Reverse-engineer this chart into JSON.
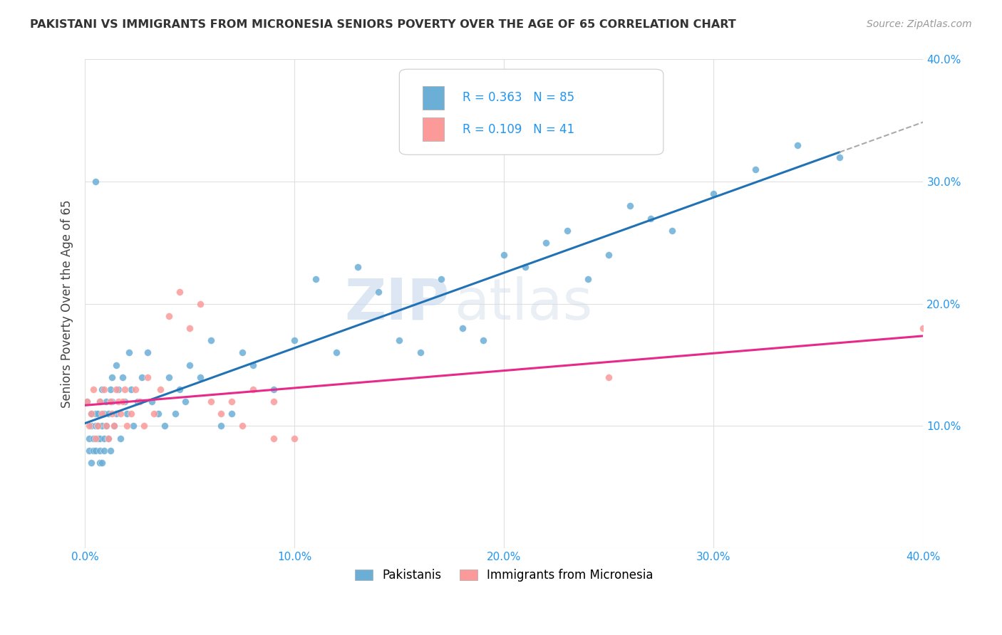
{
  "title": "PAKISTANI VS IMMIGRANTS FROM MICRONESIA SENIORS POVERTY OVER THE AGE OF 65 CORRELATION CHART",
  "source": "Source: ZipAtlas.com",
  "ylabel": "Seniors Poverty Over the Age of 65",
  "legend_pakistanis": "Pakistanis",
  "legend_micronesia": "Immigrants from Micronesia",
  "r_pakistani": 0.363,
  "n_pakistani": 85,
  "r_micronesia": 0.109,
  "n_micronesia": 41,
  "pakistani_color": "#6baed6",
  "micronesia_color": "#fb9a99",
  "pakistani_line_color": "#2171b5",
  "micronesia_line_color": "#e7298a",
  "watermark_zip": "ZIP",
  "watermark_atlas": "atlas",
  "xmin": 0.0,
  "xmax": 0.4,
  "ymin": 0.0,
  "ymax": 0.4,
  "pakistani_x": [
    0.001,
    0.002,
    0.002,
    0.003,
    0.003,
    0.003,
    0.004,
    0.004,
    0.005,
    0.005,
    0.005,
    0.006,
    0.006,
    0.006,
    0.007,
    0.007,
    0.007,
    0.007,
    0.008,
    0.008,
    0.008,
    0.009,
    0.009,
    0.009,
    0.01,
    0.01,
    0.011,
    0.011,
    0.012,
    0.012,
    0.013,
    0.013,
    0.014,
    0.015,
    0.015,
    0.016,
    0.017,
    0.018,
    0.019,
    0.02,
    0.021,
    0.022,
    0.023,
    0.025,
    0.027,
    0.03,
    0.032,
    0.035,
    0.038,
    0.04,
    0.043,
    0.045,
    0.048,
    0.05,
    0.055,
    0.06,
    0.065,
    0.07,
    0.075,
    0.08,
    0.09,
    0.1,
    0.11,
    0.12,
    0.13,
    0.14,
    0.15,
    0.16,
    0.17,
    0.18,
    0.19,
    0.2,
    0.21,
    0.22,
    0.23,
    0.24,
    0.25,
    0.26,
    0.27,
    0.28,
    0.3,
    0.32,
    0.34,
    0.36,
    0.005
  ],
  "pakistani_y": [
    0.12,
    0.08,
    0.09,
    0.1,
    0.11,
    0.07,
    0.08,
    0.09,
    0.1,
    0.11,
    0.08,
    0.09,
    0.1,
    0.11,
    0.08,
    0.09,
    0.12,
    0.07,
    0.1,
    0.13,
    0.07,
    0.09,
    0.11,
    0.08,
    0.12,
    0.1,
    0.11,
    0.09,
    0.13,
    0.08,
    0.14,
    0.12,
    0.1,
    0.15,
    0.11,
    0.13,
    0.09,
    0.14,
    0.12,
    0.11,
    0.16,
    0.13,
    0.1,
    0.12,
    0.14,
    0.16,
    0.12,
    0.11,
    0.1,
    0.14,
    0.11,
    0.13,
    0.12,
    0.15,
    0.14,
    0.17,
    0.1,
    0.11,
    0.16,
    0.15,
    0.13,
    0.17,
    0.22,
    0.16,
    0.23,
    0.21,
    0.17,
    0.16,
    0.22,
    0.18,
    0.17,
    0.24,
    0.23,
    0.25,
    0.26,
    0.22,
    0.24,
    0.28,
    0.27,
    0.26,
    0.29,
    0.31,
    0.33,
    0.32,
    0.3
  ],
  "micronesia_x": [
    0.001,
    0.002,
    0.003,
    0.004,
    0.005,
    0.006,
    0.007,
    0.008,
    0.009,
    0.01,
    0.011,
    0.012,
    0.013,
    0.014,
    0.015,
    0.016,
    0.017,
    0.018,
    0.019,
    0.02,
    0.022,
    0.024,
    0.026,
    0.028,
    0.03,
    0.033,
    0.036,
    0.04,
    0.045,
    0.05,
    0.055,
    0.06,
    0.065,
    0.07,
    0.075,
    0.08,
    0.09,
    0.1,
    0.09,
    0.25,
    0.4
  ],
  "micronesia_y": [
    0.12,
    0.1,
    0.11,
    0.13,
    0.09,
    0.1,
    0.12,
    0.11,
    0.13,
    0.1,
    0.09,
    0.12,
    0.11,
    0.1,
    0.13,
    0.12,
    0.11,
    0.12,
    0.13,
    0.1,
    0.11,
    0.13,
    0.12,
    0.1,
    0.14,
    0.11,
    0.13,
    0.19,
    0.21,
    0.18,
    0.2,
    0.12,
    0.11,
    0.12,
    0.1,
    0.13,
    0.12,
    0.09,
    0.09,
    0.14,
    0.18
  ]
}
